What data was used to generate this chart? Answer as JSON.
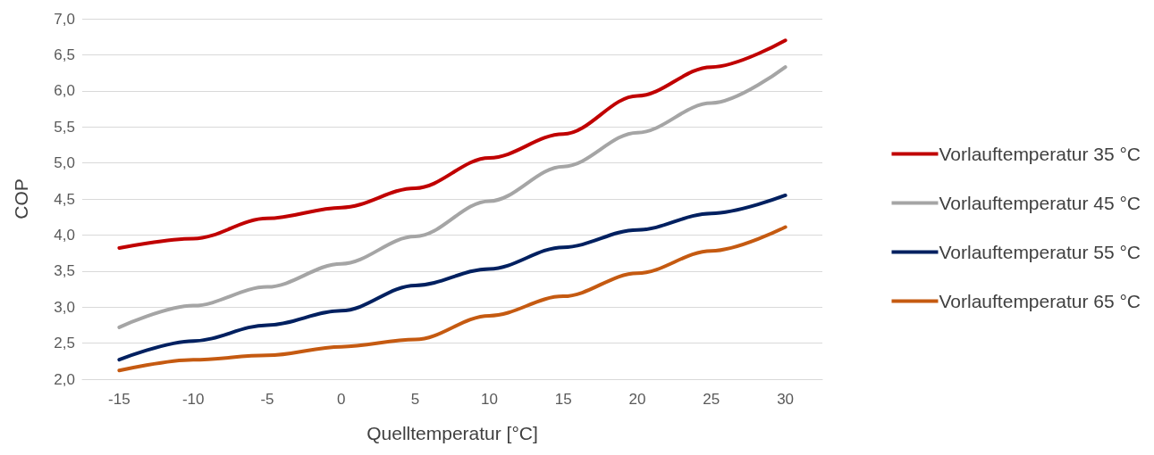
{
  "chart_data": {
    "type": "line",
    "xlabel": "Quelltemperatur [°C]",
    "ylabel": "COP",
    "categories": [
      "-15",
      "-10",
      "-5",
      "0",
      "5",
      "10",
      "15",
      "20",
      "25",
      "30"
    ],
    "series": [
      {
        "name": "Vorlauftemperatur 35 °C",
        "color": "#c00000",
        "values": [
          3.82,
          3.95,
          4.23,
          4.38,
          4.65,
          5.07,
          5.4,
          5.93,
          6.33,
          6.7
        ]
      },
      {
        "name": "Vorlauftemperatur 45 °C",
        "color": "#a5a5a5",
        "values": [
          2.72,
          3.02,
          3.28,
          3.6,
          3.98,
          4.47,
          4.95,
          5.42,
          5.83,
          6.33
        ]
      },
      {
        "name": "Vorlauftemperatur 55 °C",
        "color": "#002060",
        "values": [
          2.27,
          2.53,
          2.75,
          2.95,
          3.3,
          3.53,
          3.83,
          4.07,
          4.3,
          4.55
        ]
      },
      {
        "name": "Vorlauftemperatur 65 °C",
        "color": "#c55a11",
        "values": [
          2.12,
          2.27,
          2.33,
          2.45,
          2.55,
          2.88,
          3.15,
          3.47,
          3.78,
          4.11
        ]
      }
    ],
    "ylim": [
      2,
      7
    ],
    "yticks": [
      {
        "value": 2,
        "label": "2,0"
      },
      {
        "value": 2.5,
        "label": "2,5"
      },
      {
        "value": 3,
        "label": "3,0"
      },
      {
        "value": 3.5,
        "label": "3,5"
      },
      {
        "value": 4,
        "label": "4,0"
      },
      {
        "value": 4.5,
        "label": "4,5"
      },
      {
        "value": 5,
        "label": "5,0"
      },
      {
        "value": 5.5,
        "label": "5,5"
      },
      {
        "value": 6,
        "label": "6,0"
      },
      {
        "value": 6.5,
        "label": "6,5"
      },
      {
        "value": 7,
        "label": "7,0"
      }
    ],
    "grid": "y",
    "legend": "right",
    "marker": "none",
    "line_style": "solid"
  }
}
